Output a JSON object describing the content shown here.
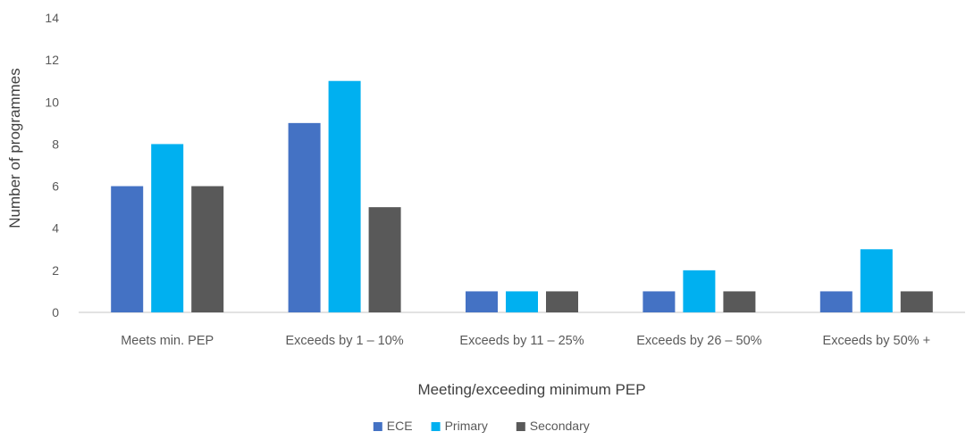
{
  "chart_data": {
    "type": "bar",
    "title": "",
    "xlabel": "Meeting/exceeding minimum PEP",
    "ylabel": "Number of programmes",
    "ylim": [
      0,
      14
    ],
    "yticks": [
      0,
      2,
      4,
      6,
      8,
      10,
      12,
      14
    ],
    "grid": false,
    "legend_position": "bottom",
    "categories": [
      "Meets min. PEP",
      "Exceeds by 1 – 10%",
      "Exceeds by 11 – 25%",
      "Exceeds by 26 – 50%",
      "Exceeds by 50% +"
    ],
    "series": [
      {
        "name": "ECE",
        "color": "#4472C4",
        "values": [
          6,
          9,
          1,
          1,
          1
        ]
      },
      {
        "name": "Primary",
        "color": "#00B0F0",
        "values": [
          8,
          11,
          1,
          2,
          3
        ]
      },
      {
        "name": "Secondary",
        "color": "#595959",
        "values": [
          6,
          5,
          1,
          1,
          1
        ]
      }
    ]
  }
}
